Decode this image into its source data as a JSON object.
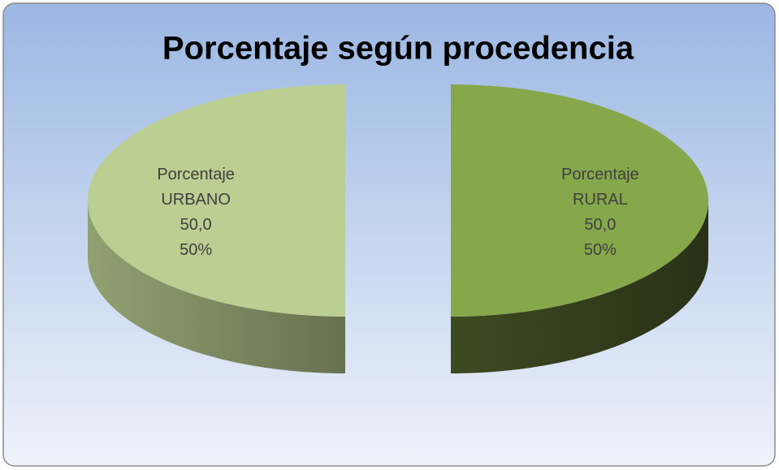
{
  "chart_data": {
    "type": "pie",
    "title": "Porcentaje según procedencia",
    "categories": [
      "Porcentaje URBANO",
      "Porcentaje RURAL"
    ],
    "values": [
      50.0,
      50.0
    ],
    "value_labels": [
      "50,0",
      "50,0"
    ],
    "percents": [
      50,
      50
    ],
    "percent_labels": [
      "50%",
      "50%"
    ],
    "colors": [
      "#bacf91",
      "#87a74b"
    ]
  }
}
